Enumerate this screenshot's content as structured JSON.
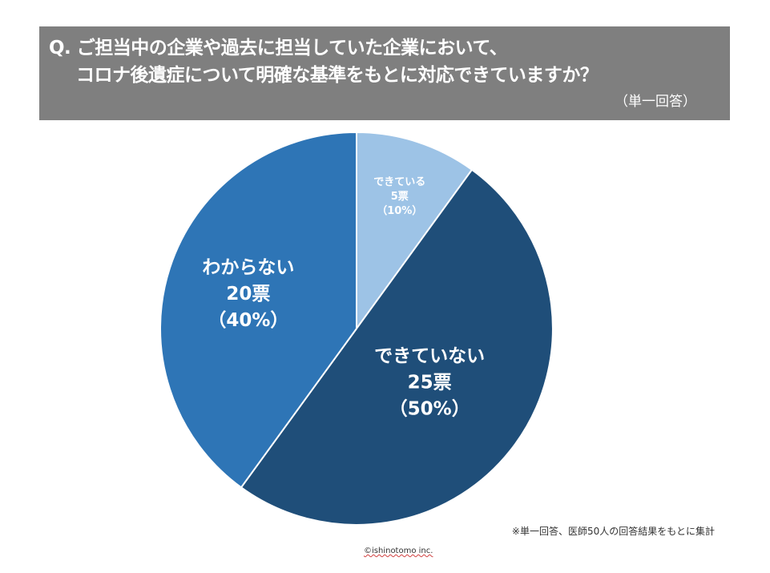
{
  "question": {
    "line1": "Q. ご担当中の企業や過去に担当していた企業において、",
    "line2": "コロナ後遺症について明確な基準をもとに対応できていますか？",
    "note": "（単一回答）"
  },
  "chart_data": {
    "type": "pie",
    "title": "Q. ご担当中の企業や過去に担当していた企業において、コロナ後遺症について明確な基準をもとに対応できていますか？",
    "unit": "票",
    "slices": [
      {
        "label": "できている",
        "count_label": "5票",
        "pct_label": "（10%）",
        "value": 5,
        "percent": 10,
        "color": "#9dc3e6"
      },
      {
        "label": "できていない",
        "count_label": "25票",
        "pct_label": "（50%）",
        "value": 25,
        "percent": 50,
        "color": "#1f4e79"
      },
      {
        "label": "わからない",
        "count_label": "20票",
        "pct_label": "（40%）",
        "value": 20,
        "percent": 40,
        "color": "#2e75b6"
      }
    ]
  },
  "footnote": "※単一回答、医師50人の回答結果をもとに集計",
  "copyright": "©ishinotomo inc."
}
